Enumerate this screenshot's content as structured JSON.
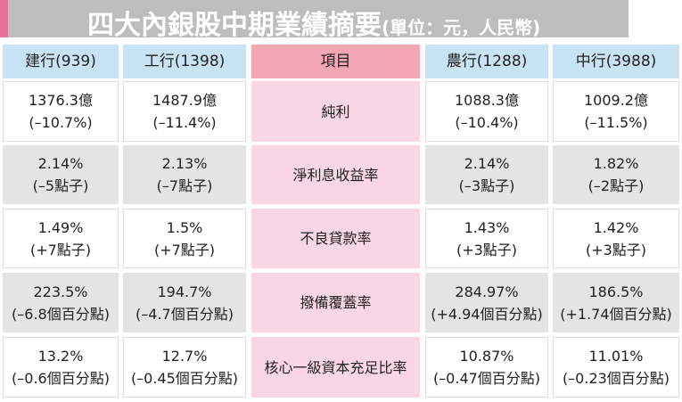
{
  "header": {
    "title": "四大內銀股中期業績摘要",
    "subtitle": "(單位：元，人民幣)"
  },
  "table": {
    "columns": [
      "建行(939)",
      "工行(1398)",
      "項目",
      "農行(1288)",
      "中行(3988)"
    ],
    "rows": [
      {
        "item": "純利",
        "cells": [
          [
            "1376.3億",
            "(–10.7%)"
          ],
          [
            "1487.9億",
            "(–11.4%)"
          ],
          [
            "1088.3億",
            "(–10.4%)"
          ],
          [
            "1009.2億",
            "(–11.5%)"
          ]
        ]
      },
      {
        "item": "淨利息收益率",
        "cells": [
          [
            "2.14%",
            "(–5點子)"
          ],
          [
            "2.13%",
            "(–7點子)"
          ],
          [
            "2.14%",
            "(–3點子)"
          ],
          [
            "1.82%",
            "(–2點子)"
          ]
        ]
      },
      {
        "item": "不良貸款率",
        "cells": [
          [
            "1.49%",
            "(+7點子)"
          ],
          [
            "1.5%",
            "(+7點子)"
          ],
          [
            "1.43%",
            "(+3點子)"
          ],
          [
            "1.42%",
            "(+3點子)"
          ]
        ]
      },
      {
        "item": "撥備覆蓋率",
        "cells": [
          [
            "223.5%",
            "(–6.8個百分點)"
          ],
          [
            "194.7%",
            "(–4.7個百分點)"
          ],
          [
            "284.97%",
            "(+4.94個百分點)"
          ],
          [
            "186.5%",
            "(+1.74個百分點)"
          ]
        ]
      },
      {
        "item": "核心一級資本充足比率",
        "cells": [
          [
            "13.2%",
            "(–0.6個百分點)"
          ],
          [
            "12.7%",
            "(–0.45個百分點)"
          ],
          [
            "10.87%",
            "(–0.47個百分點)"
          ],
          [
            "11.01%",
            "(–0.23個百分點)"
          ]
        ]
      }
    ]
  }
}
